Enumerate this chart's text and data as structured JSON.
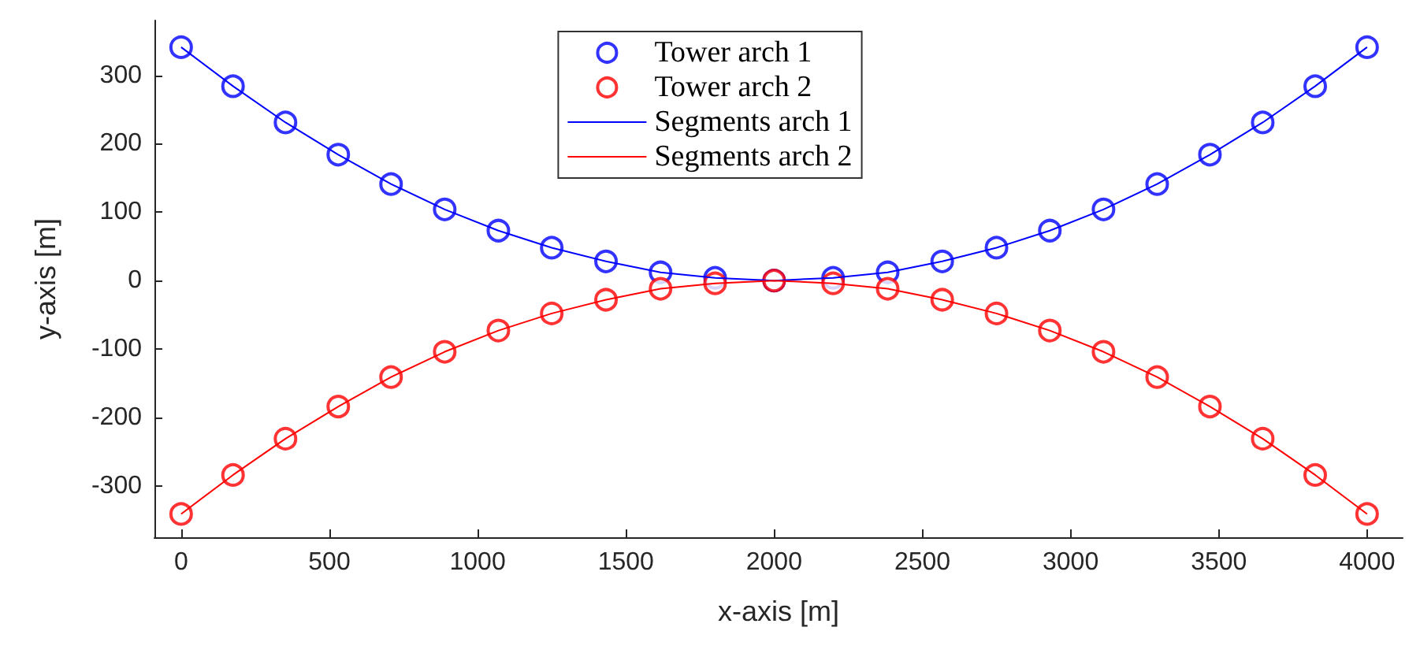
{
  "chart_data": {
    "type": "line",
    "xlabel": "x-axis [m]",
    "ylabel": "y-axis [m]",
    "xlim": [
      -90,
      4120
    ],
    "xticks": [
      0,
      500,
      1000,
      1500,
      2000,
      2500,
      3000,
      3500,
      4000
    ],
    "ylim": [
      -375,
      380
    ],
    "yticks": [
      -300,
      -200,
      -100,
      0,
      100,
      200,
      300
    ],
    "grid": false,
    "legend": "top",
    "series": [
      {
        "name": "Tower arch 1",
        "type": "scatter",
        "marker": "circle",
        "color": "#0000ff",
        "x": [
          0,
          175,
          352,
          530,
          708,
          889,
          1070,
          1250,
          1433,
          1617,
          1801,
          2000,
          2199,
          2383,
          2567,
          2750,
          2930,
          3111,
          3292,
          3470,
          3648,
          3825,
          4000
        ],
        "values": [
          341,
          284,
          231,
          184,
          141,
          104,
          73,
          48,
          28,
          12,
          4,
          0,
          4,
          12,
          28,
          48,
          73,
          104,
          141,
          184,
          231,
          284,
          341
        ]
      },
      {
        "name": "Tower arch 2",
        "type": "scatter",
        "marker": "circle",
        "color": "#ff0000",
        "x": [
          0,
          175,
          352,
          530,
          708,
          889,
          1070,
          1250,
          1433,
          1617,
          1801,
          2000,
          2199,
          2383,
          2567,
          2750,
          2930,
          3111,
          3292,
          3470,
          3648,
          3825,
          4000
        ],
        "values": [
          -341,
          -284,
          -231,
          -184,
          -141,
          -104,
          -73,
          -48,
          -28,
          -12,
          -4,
          0,
          -4,
          -12,
          -28,
          -48,
          -73,
          -104,
          -141,
          -184,
          -231,
          -284,
          -341
        ]
      },
      {
        "name": "Segments arch 1",
        "marker": "none",
        "color": "#0000ff",
        "x": [
          0,
          175,
          352,
          530,
          708,
          889,
          1070,
          1250,
          1433,
          1617,
          1801,
          2000,
          2199,
          2383,
          2567,
          2750,
          2930,
          3111,
          3292,
          3470,
          3648,
          3825,
          4000
        ],
        "values": [
          341,
          284,
          231,
          184,
          141,
          104,
          73,
          48,
          28,
          12,
          4,
          0,
          4,
          12,
          28,
          48,
          73,
          104,
          141,
          184,
          231,
          284,
          341
        ]
      },
      {
        "name": "Segments arch 2",
        "marker": "none",
        "color": "#ff0000",
        "x": [
          0,
          175,
          352,
          530,
          708,
          889,
          1070,
          1250,
          1433,
          1617,
          1801,
          2000,
          2199,
          2383,
          2567,
          2750,
          2930,
          3111,
          3292,
          3470,
          3648,
          3825,
          4000
        ],
        "values": [
          -341,
          -284,
          -231,
          -184,
          -141,
          -104,
          -73,
          -48,
          -28,
          -12,
          -4,
          0,
          -4,
          -12,
          -28,
          -48,
          -73,
          -104,
          -141,
          -184,
          -231,
          -284,
          -341
        ]
      }
    ]
  }
}
